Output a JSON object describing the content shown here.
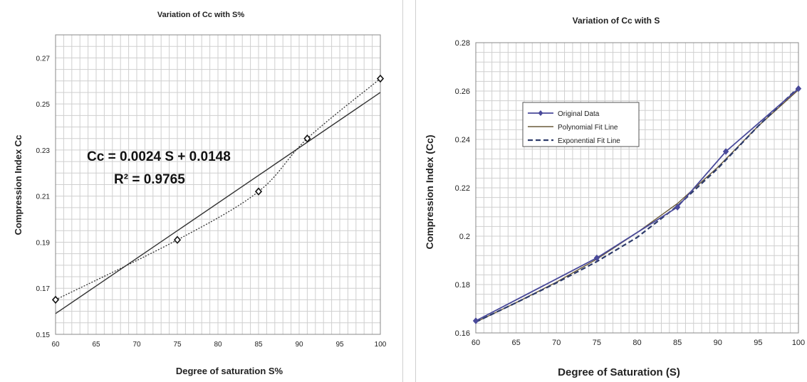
{
  "chart_data": [
    {
      "type": "scatter",
      "title": "Variation of Cc with S%",
      "xlabel": "Degree of saturation S%",
      "ylabel": "Compression Index Cc",
      "xlim": [
        60,
        100
      ],
      "ylim": [
        0.15,
        0.28
      ],
      "x_ticks": [
        "60",
        "65",
        "70",
        "75",
        "80",
        "85",
        "90",
        "95",
        "100"
      ],
      "y_ticks": [
        "0.15",
        "0.17",
        "0.19",
        "0.21",
        "0.23",
        "0.25",
        "0.27"
      ],
      "grid": true,
      "series": [
        {
          "style": "markers-dotted-curve",
          "x": [
            60,
            75,
            85,
            91,
            100
          ],
          "y": [
            0.165,
            0.191,
            0.212,
            0.235,
            0.261
          ]
        }
      ],
      "trendline": {
        "type": "linear",
        "slope": 0.0024,
        "intercept": 0.0148,
        "from": [
          60,
          0.159
        ],
        "to": [
          100,
          0.255
        ]
      },
      "annotations": [
        "Cc = 0.0024 S + 0.0148",
        "R² = 0.9765"
      ]
    },
    {
      "type": "line",
      "title": "Variation of Cc with S",
      "xlabel": "Degree of Saturation (S)",
      "ylabel": "Compression Index (Cc)",
      "xlim": [
        60,
        100
      ],
      "ylim": [
        0.16,
        0.28
      ],
      "x_ticks": [
        "60",
        "65",
        "70",
        "75",
        "80",
        "85",
        "90",
        "95",
        "100"
      ],
      "y_ticks": [
        "0.16",
        "0.18",
        "0.2",
        "0.22",
        "0.24",
        "0.26",
        "0.28"
      ],
      "grid": true,
      "legend_position": "top-left",
      "series": [
        {
          "name": "Original Data",
          "color": "#4a4a9a",
          "x": [
            60,
            75,
            85,
            91,
            100
          ],
          "y": [
            0.165,
            0.191,
            0.212,
            0.235,
            0.261
          ]
        },
        {
          "name": "Polynomial Fit Line",
          "color": "#6a5a3a",
          "x": [
            60,
            65,
            70,
            75,
            80,
            85,
            90,
            95,
            100
          ],
          "y": [
            0.1645,
            0.1725,
            0.181,
            0.1905,
            0.2015,
            0.2135,
            0.2285,
            0.2455,
            0.2605
          ]
        },
        {
          "name": "Exponential Fit Line",
          "color": "#2d3b6b",
          "x": [
            60,
            65,
            70,
            75,
            80,
            85,
            90,
            95,
            100
          ],
          "y": [
            0.1645,
            0.1725,
            0.1807,
            0.1895,
            0.1995,
            0.2125,
            0.228,
            0.2455,
            0.2615
          ]
        }
      ]
    }
  ]
}
